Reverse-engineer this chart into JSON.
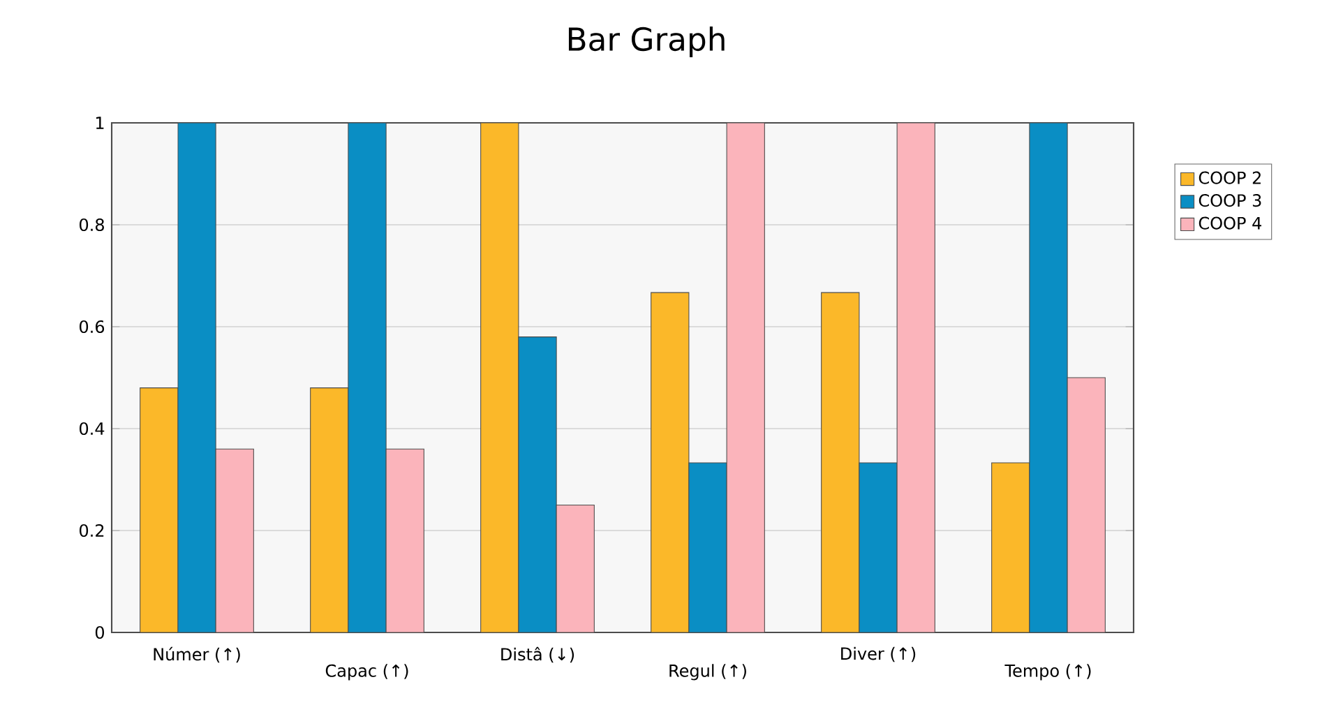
{
  "chart_data": {
    "type": "bar",
    "title": "Bar Graph",
    "categories": [
      "Númer (↑)",
      "Capac (↑)",
      "Distâ (↓)",
      "Regul (↑)",
      "Diver (↑)",
      "Tempo (↑)"
    ],
    "series": [
      {
        "name": "COOP 2",
        "color": "#fbb829",
        "values": [
          0.48,
          0.48,
          1,
          0.667,
          0.667,
          0.333
        ]
      },
      {
        "name": "COOP 3",
        "color": "#0a8ec4",
        "values": [
          1,
          1,
          0.58,
          0.333,
          0.333,
          1
        ]
      },
      {
        "name": "COOP 4",
        "color": "#fbb4bb",
        "values": [
          0.36,
          0.36,
          0.25,
          1,
          1,
          0.5
        ]
      }
    ],
    "ylim": [
      0,
      1
    ],
    "yticks": [
      0,
      0.2,
      0.4,
      0.6,
      0.8,
      1
    ],
    "grid": "y",
    "legend": "right"
  }
}
